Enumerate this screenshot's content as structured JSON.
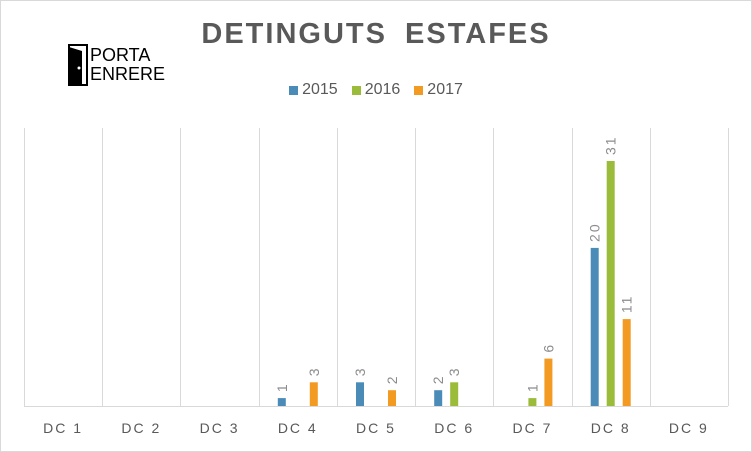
{
  "colors": {
    "s2015": "#4a8bb8",
    "s2016": "#9bbb3a",
    "s2017": "#f39a22",
    "grid": "#d9d9d9",
    "label": "#8c8c8c"
  },
  "logo": {
    "line1": "PORTA",
    "line2": "ENRERE"
  },
  "chart_data": {
    "type": "bar",
    "title": "DETINGUTS  ESTAFES",
    "categories": [
      "DC 1",
      "DC 2",
      "DC 3",
      "DC 4",
      "DC 5",
      "DC 6",
      "DC 7",
      "DC 8",
      "DC 9"
    ],
    "series": [
      {
        "name": "2015",
        "values": [
          null,
          null,
          null,
          1,
          3,
          2,
          null,
          20,
          null
        ]
      },
      {
        "name": "2016",
        "values": [
          null,
          null,
          null,
          null,
          null,
          3,
          1,
          31,
          null
        ]
      },
      {
        "name": "2017",
        "values": [
          null,
          null,
          null,
          3,
          2,
          null,
          6,
          11,
          null
        ]
      }
    ],
    "xlabel": "",
    "ylabel": "",
    "ylim": [
      0,
      35
    ],
    "grid": "vertical",
    "legend": "top-center"
  }
}
